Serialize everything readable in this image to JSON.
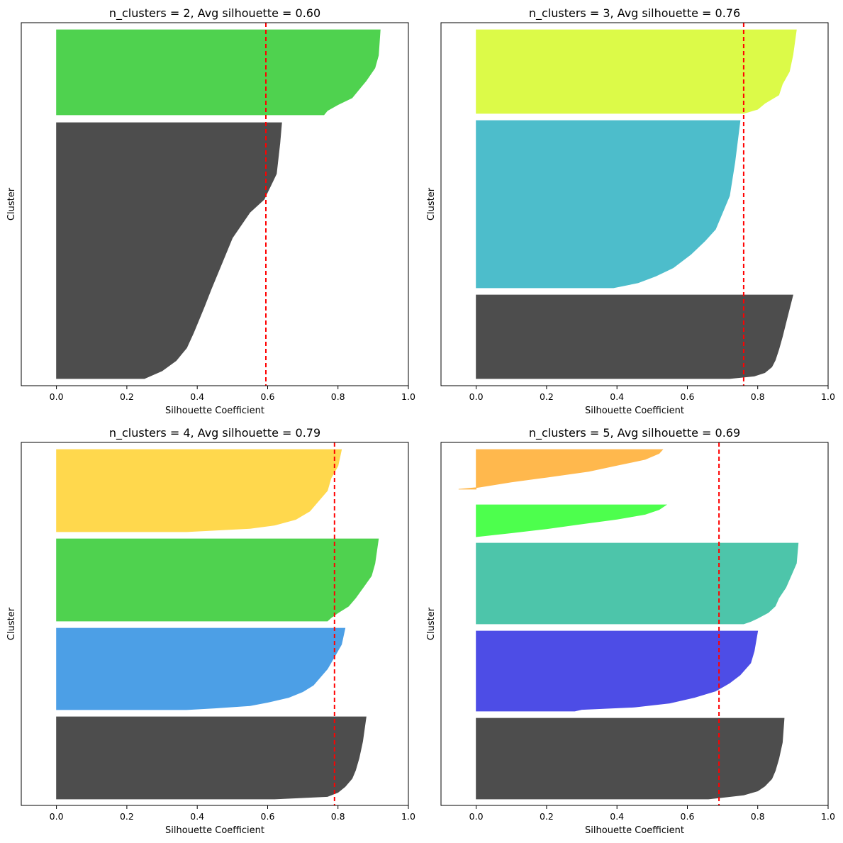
{
  "chart_data": [
    {
      "type": "silhouette",
      "title": "n_clusters = 2, Avg silhouette = 0.60",
      "xlabel": "Silhouette Coefficient",
      "ylabel": "Cluster",
      "xlim": [
        -0.1,
        1.0
      ],
      "xticks": [
        "0.0",
        "0.2",
        "0.4",
        "0.6",
        "0.8",
        "1.0"
      ],
      "avg_silhouette": 0.595,
      "clusters": [
        {
          "color": "#4FD24F",
          "profile": [
            [
              0,
              0.92
            ],
            [
              0.3,
              0.915
            ],
            [
              0.45,
              0.905
            ],
            [
              0.6,
              0.88
            ],
            [
              0.7,
              0.86
            ],
            [
              0.8,
              0.84
            ],
            [
              0.88,
              0.8
            ],
            [
              0.95,
              0.77
            ],
            [
              1.0,
              0.76
            ]
          ]
        },
        {
          "color": "#4D4D4D",
          "profile": [
            [
              0,
              0.64
            ],
            [
              0.08,
              0.635
            ],
            [
              0.2,
              0.625
            ],
            [
              0.3,
              0.59
            ],
            [
              0.35,
              0.55
            ],
            [
              0.45,
              0.5
            ],
            [
              0.55,
              0.47
            ],
            [
              0.65,
              0.44
            ],
            [
              0.72,
              0.42
            ],
            [
              0.82,
              0.39
            ],
            [
              0.88,
              0.37
            ],
            [
              0.93,
              0.34
            ],
            [
              0.97,
              0.3
            ],
            [
              1.0,
              0.25
            ]
          ]
        }
      ]
    },
    {
      "type": "silhouette",
      "title": "n_clusters = 3, Avg silhouette = 0.76",
      "xlabel": "Silhouette Coefficient",
      "ylabel": "Cluster",
      "xlim": [
        -0.1,
        1.0
      ],
      "xticks": [
        "0.0",
        "0.2",
        "0.4",
        "0.6",
        "0.8",
        "1.0"
      ],
      "avg_silhouette": 0.76,
      "clusters": [
        {
          "color": "#DCFA48",
          "profile": [
            [
              0,
              0.91
            ],
            [
              0.3,
              0.9
            ],
            [
              0.5,
              0.89
            ],
            [
              0.65,
              0.87
            ],
            [
              0.78,
              0.86
            ],
            [
              0.88,
              0.82
            ],
            [
              0.95,
              0.8
            ],
            [
              1.0,
              0.76
            ]
          ]
        },
        {
          "color": "#4DBDCB",
          "profile": [
            [
              0,
              0.75
            ],
            [
              0.25,
              0.735
            ],
            [
              0.45,
              0.72
            ],
            [
              0.55,
              0.7
            ],
            [
              0.65,
              0.68
            ],
            [
              0.72,
              0.65
            ],
            [
              0.8,
              0.61
            ],
            [
              0.88,
              0.56
            ],
            [
              0.93,
              0.51
            ],
            [
              0.97,
              0.46
            ],
            [
              1.0,
              0.39
            ]
          ]
        },
        {
          "color": "#4D4D4D",
          "profile": [
            [
              0,
              0.9
            ],
            [
              0.25,
              0.885
            ],
            [
              0.5,
              0.87
            ],
            [
              0.65,
              0.86
            ],
            [
              0.78,
              0.85
            ],
            [
              0.86,
              0.84
            ],
            [
              0.93,
              0.82
            ],
            [
              0.97,
              0.79
            ],
            [
              1.0,
              0.72
            ]
          ]
        }
      ]
    },
    {
      "type": "silhouette",
      "title": "n_clusters = 4, Avg silhouette = 0.79",
      "xlabel": "Silhouette Coefficient",
      "ylabel": "Cluster",
      "xlim": [
        -0.1,
        1.0
      ],
      "xticks": [
        "0.0",
        "0.2",
        "0.4",
        "0.6",
        "0.8",
        "1.0"
      ],
      "avg_silhouette": 0.79,
      "clusters": [
        {
          "color": "#FFD84D",
          "profile": [
            [
              0,
              0.81
            ],
            [
              0.2,
              0.8
            ],
            [
              0.35,
              0.78
            ],
            [
              0.5,
              0.77
            ],
            [
              0.65,
              0.74
            ],
            [
              0.75,
              0.72
            ],
            [
              0.85,
              0.68
            ],
            [
              0.92,
              0.62
            ],
            [
              0.96,
              0.55
            ],
            [
              1.0,
              0.37
            ]
          ]
        },
        {
          "color": "#4FD24F",
          "profile": [
            [
              0,
              0.915
            ],
            [
              0.3,
              0.905
            ],
            [
              0.45,
              0.895
            ],
            [
              0.6,
              0.87
            ],
            [
              0.72,
              0.85
            ],
            [
              0.82,
              0.83
            ],
            [
              0.9,
              0.8
            ],
            [
              0.96,
              0.78
            ],
            [
              1.0,
              0.77
            ]
          ]
        },
        {
          "color": "#4C9FE6",
          "profile": [
            [
              0,
              0.82
            ],
            [
              0.2,
              0.81
            ],
            [
              0.35,
              0.79
            ],
            [
              0.5,
              0.77
            ],
            [
              0.6,
              0.75
            ],
            [
              0.7,
              0.73
            ],
            [
              0.78,
              0.7
            ],
            [
              0.85,
              0.66
            ],
            [
              0.91,
              0.6
            ],
            [
              0.95,
              0.55
            ],
            [
              0.98,
              0.45
            ],
            [
              1.0,
              0.37
            ]
          ]
        },
        {
          "color": "#4D4D4D",
          "profile": [
            [
              0,
              0.88
            ],
            [
              0.3,
              0.87
            ],
            [
              0.5,
              0.86
            ],
            [
              0.65,
              0.85
            ],
            [
              0.75,
              0.84
            ],
            [
              0.85,
              0.82
            ],
            [
              0.92,
              0.8
            ],
            [
              0.97,
              0.77
            ],
            [
              1.0,
              0.62
            ]
          ]
        }
      ]
    },
    {
      "type": "silhouette",
      "title": "n_clusters = 5, Avg silhouette = 0.69",
      "xlabel": "Silhouette Coefficient",
      "ylabel": "Cluster",
      "xlim": [
        -0.1,
        1.0
      ],
      "xticks": [
        "0.0",
        "0.2",
        "0.4",
        "0.6",
        "0.8",
        "1.0"
      ],
      "avg_silhouette": 0.69,
      "clusters": [
        {
          "color": "#FFB84D",
          "profile": [
            [
              0,
              0.53
            ],
            [
              0.1,
              0.52
            ],
            [
              0.25,
              0.48
            ],
            [
              0.4,
              0.4
            ],
            [
              0.55,
              0.32
            ],
            [
              0.7,
              0.2
            ],
            [
              0.82,
              0.1
            ],
            [
              0.92,
              0.03
            ],
            [
              0.96,
              0.0
            ],
            [
              1.0,
              -0.05
            ]
          ]
        },
        {
          "color": "#4DFF4D",
          "profile": [
            [
              0,
              0.54
            ],
            [
              0.15,
              0.52
            ],
            [
              0.3,
              0.48
            ],
            [
              0.45,
              0.4
            ],
            [
              0.6,
              0.3
            ],
            [
              0.75,
              0.2
            ],
            [
              0.88,
              0.1
            ],
            [
              0.95,
              0.04
            ],
            [
              1.0,
              0.0
            ]
          ]
        },
        {
          "color": "#4DC5AA",
          "profile": [
            [
              0,
              0.915
            ],
            [
              0.25,
              0.91
            ],
            [
              0.4,
              0.895
            ],
            [
              0.55,
              0.88
            ],
            [
              0.68,
              0.86
            ],
            [
              0.78,
              0.85
            ],
            [
              0.86,
              0.83
            ],
            [
              0.93,
              0.8
            ],
            [
              0.97,
              0.78
            ],
            [
              1.0,
              0.76
            ]
          ]
        },
        {
          "color": "#4D4DE6",
          "profile": [
            [
              0,
              0.8
            ],
            [
              0.25,
              0.79
            ],
            [
              0.4,
              0.78
            ],
            [
              0.55,
              0.75
            ],
            [
              0.65,
              0.72
            ],
            [
              0.75,
              0.68
            ],
            [
              0.83,
              0.62
            ],
            [
              0.9,
              0.55
            ],
            [
              0.95,
              0.45
            ],
            [
              0.98,
              0.3
            ],
            [
              1.0,
              0.28
            ]
          ]
        },
        {
          "color": "#4D4D4D",
          "profile": [
            [
              0,
              0.875
            ],
            [
              0.3,
              0.87
            ],
            [
              0.5,
              0.86
            ],
            [
              0.65,
              0.85
            ],
            [
              0.75,
              0.84
            ],
            [
              0.84,
              0.82
            ],
            [
              0.9,
              0.8
            ],
            [
              0.95,
              0.76
            ],
            [
              1.0,
              0.66
            ]
          ]
        }
      ]
    }
  ]
}
